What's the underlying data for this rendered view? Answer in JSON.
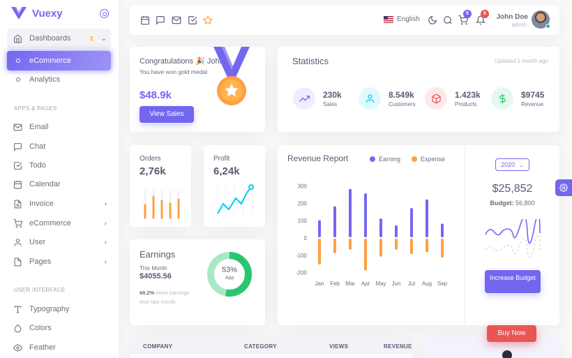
{
  "brand": {
    "name": "Vuexy"
  },
  "sidebar": {
    "dashboards": {
      "label": "Dashboards",
      "badge": "2"
    },
    "ecommerce": {
      "label": "eCommerce"
    },
    "analytics": {
      "label": "Analytics"
    },
    "apps_header": "APPS & PAGES",
    "apps": [
      {
        "label": "Email",
        "icon": "mail-icon"
      },
      {
        "label": "Chat",
        "icon": "chat-icon"
      },
      {
        "label": "Todo",
        "icon": "check-square-icon"
      },
      {
        "label": "Calendar",
        "icon": "calendar-icon"
      },
      {
        "label": "Invoice",
        "icon": "file-icon"
      },
      {
        "label": "eCommerce",
        "icon": "cart-icon"
      },
      {
        "label": "User",
        "icon": "user-icon"
      },
      {
        "label": "Pages",
        "icon": "page-icon"
      }
    ],
    "ui_header": "USER INTERFACE",
    "ui": [
      {
        "label": "Typography",
        "icon": "type-icon"
      },
      {
        "label": "Colors",
        "icon": "droplet-icon"
      },
      {
        "label": "Feather",
        "icon": "eye-icon"
      }
    ]
  },
  "navbar": {
    "language": "English",
    "cart_count": "5",
    "notification_count": "6",
    "user_name": "John Doe",
    "user_role": "admin"
  },
  "congrats": {
    "title": "Congratulations 🎉 John,",
    "subtitle": "You have won gold medal",
    "amount": "$48.9k",
    "button": "View Sales"
  },
  "statistics": {
    "title": "Statistics",
    "updated": "Updated 1 month ago",
    "items": [
      {
        "value": "230k",
        "label": "Sales",
        "color": "#7367f0",
        "bg": "#eeedfd"
      },
      {
        "value": "8.549k",
        "label": "Customers",
        "color": "#00cfe8",
        "bg": "#e0f9fc"
      },
      {
        "value": "1.423k",
        "label": "Products",
        "color": "#ea5455",
        "bg": "#fceaea"
      },
      {
        "value": "$9745",
        "label": "Revenue",
        "color": "#28c76f",
        "bg": "#e5f8ee"
      }
    ]
  },
  "orders": {
    "title": "Orders",
    "value": "2,76k"
  },
  "profit": {
    "title": "Profit",
    "value": "6,24k"
  },
  "earnings": {
    "title": "Earnings",
    "period": "This Month",
    "amount": "$4055.56",
    "note_pct": "68.2%",
    "note_rest": " more earnings than last month.",
    "donut_value": "53%",
    "donut_label": "App",
    "donut_fraction": 0.53
  },
  "revenue": {
    "title": "Revenue Report",
    "legend": [
      {
        "name": "Earning",
        "color": "#7367f0"
      },
      {
        "name": "Expense",
        "color": "#ff9f43"
      }
    ],
    "year": "2020",
    "total": "$25,852",
    "budget_label": "Budget:",
    "budget_value": "56,800",
    "button": "Increase Budget"
  },
  "chart_data": {
    "type": "bar",
    "categories": [
      "Jan",
      "Feb",
      "Mar",
      "Apr",
      "May",
      "Jun",
      "Jul",
      "Aug",
      "Sep"
    ],
    "series": [
      {
        "name": "Earning",
        "values": [
          95,
          175,
          275,
          250,
          105,
          65,
          165,
          215,
          75
        ]
      },
      {
        "name": "Expense",
        "values": [
          -145,
          -80,
          -60,
          -180,
          -100,
          -60,
          -85,
          -75,
          -105
        ]
      }
    ],
    "yticks": [
      "300",
      "200",
      "100",
      "0",
      "-100",
      "-200"
    ],
    "ylim": [
      -200,
      300
    ]
  },
  "table": {
    "headers": [
      "COMPANY",
      "CATEGORY",
      "VIEWS",
      "REVENUE"
    ]
  },
  "buy_now": "Buy Now"
}
